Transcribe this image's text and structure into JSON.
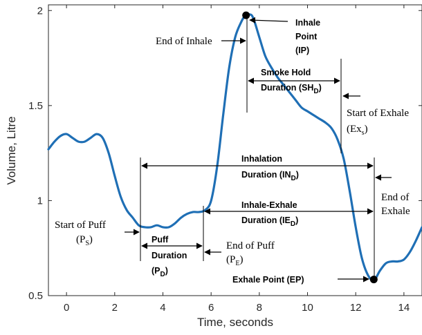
{
  "chart_data": {
    "type": "line",
    "xlabel": "Time, seconds",
    "ylabel": "Volume, Litre",
    "xlim": [
      -0.75,
      14.75
    ],
    "ylim": [
      0.5,
      2.03
    ],
    "xticks": [
      0,
      2,
      4,
      6,
      8,
      10,
      12,
      14
    ],
    "yticks": [
      0.5,
      1,
      1.5,
      2
    ],
    "xtick_labels": [
      "0",
      "2",
      "4",
      "6",
      "8",
      "10",
      "12",
      "14"
    ],
    "ytick_labels": [
      "0.5",
      "1",
      "1.5",
      "2"
    ],
    "grid": false,
    "series": [
      {
        "color": "#1f6fb5",
        "x": [
          -0.75,
          -0.5,
          -0.25,
          0,
          0.25,
          0.5,
          0.75,
          1,
          1.25,
          1.5,
          1.75,
          2,
          2.25,
          2.5,
          2.75,
          3,
          3.25,
          3.5,
          3.75,
          4,
          4.25,
          4.5,
          4.75,
          5,
          5.25,
          5.5,
          5.75,
          6,
          6.25,
          6.5,
          6.75,
          7,
          7.25,
          7.4,
          7.6,
          7.75,
          8,
          8.25,
          8.5,
          8.75,
          9,
          9.25,
          9.5,
          9.75,
          10,
          10.25,
          10.5,
          10.75,
          11,
          11.25,
          11.5,
          11.75,
          12,
          12.25,
          12.5,
          12.75,
          13,
          13.25,
          13.5,
          13.75,
          14,
          14.25,
          14.5,
          14.75
        ],
        "y": [
          1.27,
          1.31,
          1.34,
          1.35,
          1.33,
          1.31,
          1.31,
          1.33,
          1.35,
          1.33,
          1.25,
          1.13,
          1.02,
          0.95,
          0.91,
          0.87,
          0.86,
          0.86,
          0.87,
          0.86,
          0.86,
          0.88,
          0.91,
          0.93,
          0.94,
          0.94,
          0.95,
          1.0,
          1.18,
          1.45,
          1.7,
          1.86,
          1.94,
          1.97,
          1.98,
          1.96,
          1.86,
          1.76,
          1.7,
          1.65,
          1.61,
          1.57,
          1.53,
          1.49,
          1.47,
          1.45,
          1.43,
          1.41,
          1.38,
          1.32,
          1.22,
          1.05,
          0.86,
          0.7,
          0.61,
          0.58,
          0.63,
          0.67,
          0.68,
          0.68,
          0.69,
          0.73,
          0.79,
          0.86
        ]
      }
    ],
    "points": [
      {
        "x": 7.45,
        "y": 1.975
      },
      {
        "x": 12.75,
        "y": 0.585
      }
    ],
    "annotations": {
      "end_of_inhale": "End of Inhale",
      "inhale_point_l1": "Inhale",
      "inhale_point_l2": "Point",
      "inhale_point_l3": "(IP)",
      "smoke_hold_l1": "Smoke Hold",
      "smoke_hold_l2": "Duration (SH",
      "smoke_hold_sub": "D",
      "smoke_hold_close": ")",
      "start_exhale_l1": "Start of Exhale",
      "start_exhale_l2": "(Ex",
      "start_exhale_sub": "s",
      "start_exhale_close": ")",
      "inhalation_l1": "Inhalation",
      "inhalation_l2": "Duration (IN",
      "inhalation_sub": "D",
      "inhalation_close": ")",
      "end_exhale_l1": "End of",
      "end_exhale_l2": "Exhale",
      "inhale_exhale_l1": "Inhale-Exhale",
      "inhale_exhale_l2": "Duration (IE",
      "inhale_exhale_sub": "D",
      "inhale_exhale_close": ")",
      "start_puff_l1": "Start of Puff",
      "start_puff_l2": "(P",
      "start_puff_sub": "S",
      "start_puff_close": ")",
      "puff_l1": "Puff",
      "puff_l2": "Duration",
      "puff_l3": "(P",
      "puff_sub": "D",
      "puff_close": ")",
      "end_puff_l1": "End of Puff",
      "end_puff_l2": "(P",
      "end_puff_sub": "E",
      "end_puff_close": ")",
      "exhale_point": "Exhale Point (EP)"
    }
  }
}
